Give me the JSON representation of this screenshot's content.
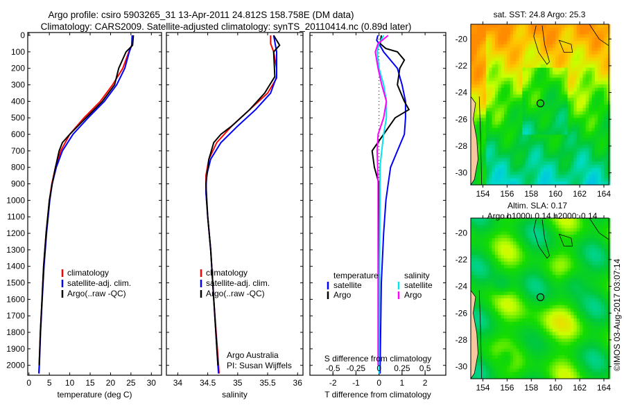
{
  "title_line1": "Argo profile: csiro 5903265_31 13-Apr-2011 24.812S 158.758E (DM data)",
  "title_line2": "Climatology: CARS2009. Satellite-adjusted climatology: synTS_20110414.nc (0.89d later)",
  "credit": "©IMOS 03-Aug-2017 03:07:14",
  "colors": {
    "climatology": "#ff0000",
    "satellite": "#0000ff",
    "argo": "#000000",
    "sal_satellite": "#00e5ee",
    "sal_argo": "#ff00ff"
  },
  "chart_data": [
    {
      "type": "line",
      "name": "temperature",
      "xlabel": "temperature (deg C)",
      "ylabel": "depth",
      "xlim": [
        -0.3,
        32.5
      ],
      "ylim": [
        2060,
        -17
      ],
      "xticks": [
        0,
        5,
        10,
        15,
        20,
        25,
        30
      ],
      "yticks": [
        0,
        100,
        200,
        300,
        400,
        500,
        600,
        700,
        800,
        900,
        1000,
        1100,
        1200,
        1300,
        1400,
        1500,
        1600,
        1700,
        1800,
        1900,
        2000
      ],
      "legend": [
        "climatology",
        "satellite-adj. clim.",
        "Argo(..raw -QC)"
      ],
      "series": [
        {
          "name": "climatology",
          "color": "#ff0000",
          "depth": [
            0,
            50,
            70,
            100,
            200,
            300,
            400,
            500,
            600,
            700,
            800,
            900,
            1000,
            1200,
            1400,
            1600,
            1800,
            2000,
            2050
          ],
          "values": [
            25.5,
            25.4,
            25,
            24.5,
            23,
            20.5,
            17.5,
            13.5,
            10,
            7.8,
            6.5,
            5.6,
            5,
            4.2,
            3.6,
            3.2,
            2.8,
            2.5,
            2.4
          ]
        },
        {
          "name": "satellite-adj. clim.",
          "color": "#0000ff",
          "depth": [
            0,
            60,
            100,
            200,
            300,
            400,
            500,
            600,
            700,
            800,
            900,
            1000,
            1200,
            1400,
            1600,
            1800,
            2000,
            2050
          ],
          "values": [
            25.3,
            25.2,
            24.6,
            23.5,
            21.5,
            18.5,
            14.5,
            10.8,
            8.2,
            6.7,
            5.7,
            5.1,
            4.3,
            3.7,
            3.25,
            2.85,
            2.55,
            2.45
          ]
        },
        {
          "name": "Argo(..raw -QC)",
          "color": "#000000",
          "depth": [
            0,
            60,
            100,
            200,
            300,
            400,
            500,
            600,
            650,
            700,
            800,
            900,
            1000,
            1200,
            1400,
            1600,
            1800,
            2000
          ],
          "values": [
            25.6,
            25.4,
            23.8,
            22,
            21,
            18,
            14,
            10,
            8.2,
            7.4,
            6.5,
            5.7,
            5,
            4.2,
            3.6,
            3.2,
            2.8,
            2.5
          ]
        }
      ]
    },
    {
      "type": "line",
      "name": "salinity",
      "xlabel": "salinity",
      "xlim": [
        33.81,
        36.09
      ],
      "ylim": [
        2060,
        -17
      ],
      "xticks": [
        34,
        34.5,
        35,
        35.5,
        36
      ],
      "legend": [
        "climatology",
        "satellite-adj. clim.",
        "Argo(..raw -QC)"
      ],
      "annotation": [
        "Argo Australia",
        "PI: Susan Wijffels"
      ],
      "series": [
        {
          "name": "climatology",
          "color": "#ff0000",
          "depth": [
            0,
            50,
            100,
            200,
            260,
            350,
            450,
            550,
            650,
            750,
            850,
            950,
            1100,
            1300,
            1600,
            2000,
            2050
          ],
          "values": [
            35.55,
            35.55,
            35.6,
            35.65,
            35.65,
            35.5,
            35.2,
            34.9,
            34.65,
            34.52,
            34.47,
            34.47,
            34.5,
            34.55,
            34.6,
            34.68,
            34.69
          ]
        },
        {
          "name": "satellite-adj. clim.",
          "color": "#0000ff",
          "depth": [
            0,
            100,
            250,
            350,
            450,
            550,
            650,
            750,
            850,
            950,
            1100,
            1300,
            1600,
            2000,
            2050
          ],
          "values": [
            35.6,
            35.65,
            35.65,
            35.55,
            35.3,
            35.0,
            34.72,
            34.55,
            34.48,
            34.47,
            34.5,
            34.55,
            34.6,
            34.67,
            34.68
          ]
        },
        {
          "name": "Argo(..raw -QC)",
          "color": "#000000",
          "depth": [
            0,
            60,
            100,
            250,
            350,
            450,
            550,
            600,
            650,
            750,
            900,
            1100,
            1300,
            1600,
            2000
          ],
          "values": [
            35.6,
            35.7,
            35.6,
            35.62,
            35.45,
            35.2,
            34.9,
            34.72,
            34.6,
            34.52,
            34.47,
            34.5,
            34.55,
            34.6,
            34.67
          ]
        }
      ]
    },
    {
      "type": "line",
      "name": "difference",
      "xlabel": "T difference from climatology",
      "x2label": "S difference from climatology",
      "xlim": [
        -3,
        2.9
      ],
      "x2lim": [
        -0.75,
        0.725
      ],
      "xticks": [
        -2,
        -1,
        0,
        1,
        2
      ],
      "x2ticks": [
        "-0.5",
        "-0.25",
        "0",
        "0.25",
        "0.5"
      ],
      "x2tick_values": [
        -0.5,
        -0.25,
        0,
        0.25,
        0.5
      ],
      "ylim": [
        2060,
        -17
      ],
      "legend_temperature": {
        "title": "temperature",
        "items": [
          "satellite",
          "Argo"
        ]
      },
      "legend_salinity": {
        "title": "salinity",
        "items": [
          "satellite",
          "Argo"
        ]
      },
      "series": [
        {
          "name": "temperature satellite",
          "axis": "T",
          "color": "#0000ff",
          "depth": [
            0,
            30,
            50,
            100,
            200,
            300,
            400,
            500,
            600,
            700,
            800,
            900,
            1000,
            1200,
            1500,
            2000,
            2050
          ],
          "values": [
            -0.05,
            -0.1,
            0,
            0.2,
            0.8,
            1.0,
            1.15,
            1.15,
            1.1,
            0.8,
            0.5,
            0.4,
            0.3,
            0.2,
            0.1,
            0.05,
            0.05
          ]
        },
        {
          "name": "temperature Argo",
          "axis": "T",
          "color": "#000000",
          "depth": [
            0,
            50,
            80,
            100,
            150,
            200,
            300,
            400,
            450,
            500,
            600,
            700,
            800,
            900,
            1000,
            1500,
            2000
          ],
          "values": [
            0.1,
            0.05,
            0.3,
            0.8,
            1.1,
            0.9,
            0.8,
            1.1,
            1.3,
            0.7,
            0.2,
            -0.3,
            -0.2,
            0,
            0,
            0.02,
            0
          ]
        },
        {
          "name": "salinity satellite",
          "axis": "S",
          "color": "#00e5ee",
          "depth": [
            0,
            50,
            100,
            200,
            300,
            400,
            500,
            600,
            700,
            800,
            1000,
            1500,
            2050
          ],
          "values": [
            0.05,
            0.0,
            -0.02,
            0.0,
            0.05,
            0.08,
            0.08,
            0.05,
            0.03,
            0.01,
            0.01,
            0.005,
            0.0
          ]
        },
        {
          "name": "salinity Argo",
          "axis": "S",
          "color": "#ff00ff",
          "depth": [
            0,
            50,
            100,
            200,
            300,
            400,
            500,
            600,
            700,
            900,
            1500,
            2000
          ],
          "values": [
            0.1,
            -0.01,
            -0.04,
            -0.01,
            0.03,
            0.08,
            0.05,
            -0.01,
            -0.02,
            -0.01,
            -0.01,
            -0.01
          ]
        }
      ]
    },
    {
      "type": "heatmap",
      "name": "sst-map",
      "title": "sat. SST: 24.8 Argo: 25.3",
      "xlim": [
        153.0,
        164.4
      ],
      "ylim": [
        -30.9,
        -18.9
      ],
      "xticks": [
        154,
        156,
        158,
        160,
        162,
        164
      ],
      "yticks": [
        -20,
        -22,
        -24,
        -26,
        -28,
        -30
      ],
      "argo_position": [
        158.758,
        -24.812
      ]
    },
    {
      "type": "heatmap",
      "name": "sla-map",
      "title_line1": "Altim. SLA: 0.17",
      "title_line2": "Argo h1000: 0.14 h2000: 0.14",
      "xlim": [
        153.0,
        164.4
      ],
      "ylim": [
        -30.9,
        -18.9
      ],
      "xticks": [
        154,
        156,
        158,
        160,
        162,
        164
      ],
      "yticks": [
        -20,
        -22,
        -24,
        -26,
        -28,
        -30
      ],
      "argo_position": [
        158.758,
        -24.812
      ]
    }
  ]
}
